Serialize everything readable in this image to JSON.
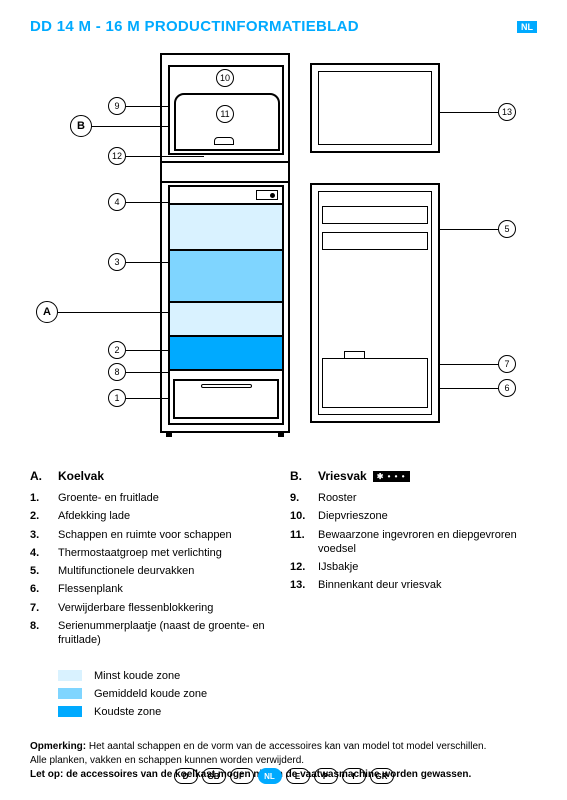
{
  "header": {
    "title": "DD 14 M - 16 M PRODUCTINFORMATIEBLAD",
    "lang_badge": "NL"
  },
  "colors": {
    "accent": "#00aaff",
    "zone_light": "#d9f2ff",
    "zone_medium": "#7fd5ff",
    "zone_dark": "#00aaff",
    "line": "#000000",
    "bg": "#ffffff"
  },
  "diagram": {
    "labels_letters": [
      "A",
      "B"
    ],
    "labels_numbers": [
      "1",
      "2",
      "3",
      "4",
      "5",
      "6",
      "7",
      "8",
      "9",
      "10",
      "11",
      "12",
      "13"
    ]
  },
  "sectionA": {
    "letter": "A.",
    "heading": "Koelvak",
    "items": [
      {
        "n": "1.",
        "t": "Groente- en fruitlade"
      },
      {
        "n": "2.",
        "t": "Afdekking lade"
      },
      {
        "n": "3.",
        "t": "Schappen en ruimte voor schappen"
      },
      {
        "n": "4.",
        "t": "Thermostaatgroep met verlichting"
      },
      {
        "n": "5.",
        "t": "Multifunctionele deurvakken"
      },
      {
        "n": "6.",
        "t": "Flessenplank"
      },
      {
        "n": "7.",
        "t": "Verwijderbare flessenblokkering"
      },
      {
        "n": "8.",
        "t": "Serienummerplaatje (naast de groente- en fruitlade)"
      }
    ]
  },
  "sectionB": {
    "letter": "B.",
    "heading": "Vriesvak",
    "star_badge": "✱ • • •",
    "items": [
      {
        "n": "9.",
        "t": "Rooster"
      },
      {
        "n": "10.",
        "t": "Diepvrieszone"
      },
      {
        "n": "11.",
        "t": "Bewaarzone ingevroren en diepgevroren voedsel"
      },
      {
        "n": "12.",
        "t": "IJsbakje"
      },
      {
        "n": "13.",
        "t": "Binnenkant deur vriesvak"
      }
    ]
  },
  "legend": [
    {
      "color": "#d9f2ff",
      "label": "Minst koude zone"
    },
    {
      "color": "#7fd5ff",
      "label": "Gemiddeld koude zone"
    },
    {
      "color": "#00aaff",
      "label": "Koudste zone"
    }
  ],
  "notes": {
    "line1_bold": "Opmerking:",
    "line1_rest": " Het aantal schappen en de vorm van de accessoires kan van model tot model verschillen.",
    "line2": "Alle planken, vakken en schappen kunnen worden verwijderd.",
    "line3": "Let op: de accessoires van de koelkast mogen niet in de vaatwasmachine worden gewassen."
  },
  "footer": [
    "D",
    "GB",
    "F",
    "NL",
    "E",
    "P",
    "I",
    "GR"
  ],
  "footer_active": "NL"
}
